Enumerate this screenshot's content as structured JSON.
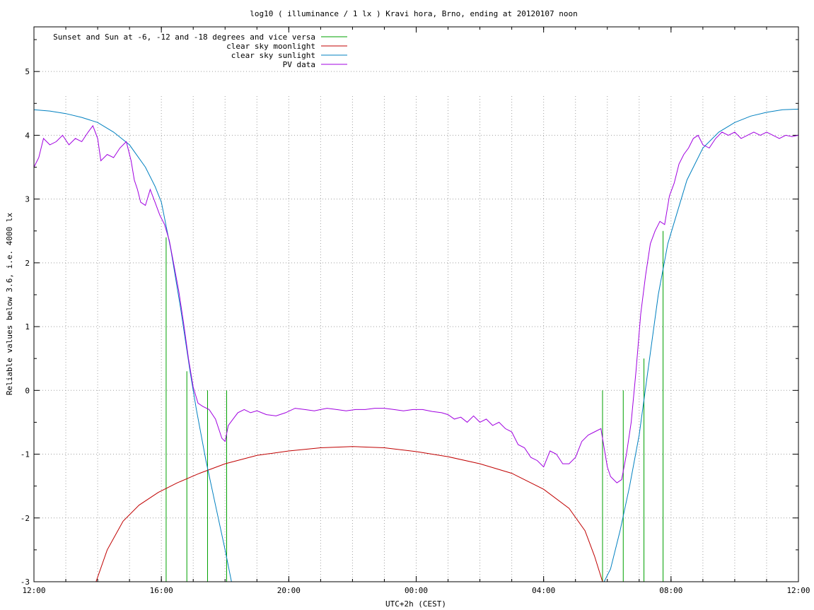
{
  "chart_data": {
    "type": "line",
    "title": "log10 ( illuminance / 1 lx ) Kravi hora, Brno, ending at 20120107 noon",
    "xlabel": "UTC+2h (CEST)",
    "ylabel": "Reliable values below 3.6, i.e. 4000 lx",
    "xlim": [
      0,
      24
    ],
    "ylim": [
      -3,
      5.7
    ],
    "x_ticks": [
      {
        "pos": 0,
        "label": "12:00"
      },
      {
        "pos": 4,
        "label": "16:00"
      },
      {
        "pos": 8,
        "label": "20:00"
      },
      {
        "pos": 12,
        "label": "00:00"
      },
      {
        "pos": 16,
        "label": "04:00"
      },
      {
        "pos": 20,
        "label": "08:00"
      },
      {
        "pos": 24,
        "label": "12:00"
      }
    ],
    "y_ticks": [
      {
        "value": -3,
        "label": "-3"
      },
      {
        "value": -2,
        "label": "-2"
      },
      {
        "value": -1,
        "label": "-1"
      },
      {
        "value": 0,
        "label": "0"
      },
      {
        "value": 1,
        "label": "1"
      },
      {
        "value": 2,
        "label": "2"
      },
      {
        "value": 3,
        "label": "3"
      },
      {
        "value": 4,
        "label": "4"
      },
      {
        "value": 5,
        "label": "5"
      }
    ],
    "grid": true,
    "legend_position": "top-left",
    "series": [
      {
        "name": "Sunset and Sun at -6, -12 and -18 degrees and vice versa",
        "color": "#00a000",
        "kind": "vertical-markers",
        "markers": [
          {
            "x": 4.15,
            "y_top": 2.4
          },
          {
            "x": 4.8,
            "y_top": 0.3
          },
          {
            "x": 5.45,
            "y_top": 0
          },
          {
            "x": 6.05,
            "y_top": 0
          },
          {
            "x": 17.85,
            "y_top": 0
          },
          {
            "x": 18.5,
            "y_top": 0
          },
          {
            "x": 19.15,
            "y_top": 0.5
          },
          {
            "x": 19.75,
            "y_top": 2.5
          }
        ]
      },
      {
        "name": "clear sky moonlight",
        "color": "#c00000",
        "x": [
          1.95,
          2.3,
          2.8,
          3.3,
          3.9,
          4.5,
          5.2,
          6.0,
          7.0,
          8.0,
          9.0,
          10.0,
          11.0,
          12.0,
          13.0,
          14.0,
          15.0,
          16.0,
          16.8,
          17.3,
          17.6,
          17.85
        ],
        "y": [
          -3.0,
          -2.5,
          -2.05,
          -1.8,
          -1.6,
          -1.45,
          -1.3,
          -1.15,
          -1.02,
          -0.95,
          -0.9,
          -0.88,
          -0.9,
          -0.96,
          -1.04,
          -1.15,
          -1.3,
          -1.55,
          -1.85,
          -2.2,
          -2.6,
          -3.0
        ]
      },
      {
        "name": "clear sky sunlight",
        "color": "#0080c0",
        "x": [
          0,
          0.5,
          1.0,
          1.5,
          2.0,
          2.5,
          3.0,
          3.5,
          3.8,
          4.0,
          4.3,
          4.6,
          4.9,
          5.1,
          5.4,
          5.7,
          6.0,
          6.2,
          17.9,
          18.1,
          18.4,
          18.7,
          19.0,
          19.3,
          19.6,
          19.9,
          20.2,
          20.5,
          21.0,
          21.5,
          22.0,
          22.5,
          23.0,
          23.5,
          24.0
        ],
        "y": [
          4.4,
          4.38,
          4.34,
          4.28,
          4.2,
          4.05,
          3.85,
          3.5,
          3.2,
          2.95,
          2.2,
          1.3,
          0.3,
          -0.3,
          -1.1,
          -1.8,
          -2.5,
          -3.0,
          -3.0,
          -2.8,
          -2.2,
          -1.5,
          -0.7,
          0.4,
          1.5,
          2.3,
          2.8,
          3.3,
          3.8,
          4.05,
          4.2,
          4.3,
          4.36,
          4.4,
          4.41
        ]
      },
      {
        "name": "PV data",
        "color": "#a000e0",
        "x": [
          0,
          0.15,
          0.3,
          0.5,
          0.7,
          0.9,
          1.1,
          1.3,
          1.5,
          1.7,
          1.85,
          2.0,
          2.1,
          2.3,
          2.5,
          2.7,
          2.9,
          3.05,
          3.15,
          3.25,
          3.35,
          3.5,
          3.65,
          3.8,
          3.95,
          4.1,
          4.25,
          4.4,
          4.55,
          4.7,
          4.85,
          5.0,
          5.15,
          5.3,
          5.5,
          5.7,
          5.9,
          6.0,
          6.1,
          6.25,
          6.4,
          6.6,
          6.8,
          7.0,
          7.3,
          7.6,
          7.9,
          8.2,
          8.5,
          8.8,
          9.0,
          9.2,
          9.5,
          9.8,
          10.1,
          10.4,
          10.7,
          11.0,
          11.3,
          11.6,
          11.9,
          12.2,
          12.5,
          12.8,
          13.0,
          13.2,
          13.4,
          13.6,
          13.8,
          14.0,
          14.2,
          14.4,
          14.6,
          14.8,
          15.0,
          15.2,
          15.4,
          15.6,
          15.8,
          16.0,
          16.2,
          16.4,
          16.6,
          16.8,
          17.0,
          17.2,
          17.4,
          17.6,
          17.8,
          17.9,
          18.0,
          18.1,
          18.2,
          18.3,
          18.45,
          18.6,
          18.75,
          18.9,
          19.05,
          19.2,
          19.35,
          19.5,
          19.65,
          19.8,
          19.95,
          20.1,
          20.25,
          20.4,
          20.55,
          20.7,
          20.85,
          21.0,
          21.2,
          21.4,
          21.6,
          21.8,
          22.0,
          22.2,
          22.4,
          22.6,
          22.8,
          23.0,
          23.2,
          23.4,
          23.6,
          23.8,
          24.0
        ],
        "y": [
          3.5,
          3.65,
          3.95,
          3.85,
          3.9,
          4.0,
          3.85,
          3.95,
          3.9,
          4.05,
          4.15,
          3.95,
          3.6,
          3.7,
          3.65,
          3.8,
          3.9,
          3.6,
          3.3,
          3.15,
          2.95,
          2.9,
          3.15,
          2.95,
          2.75,
          2.6,
          2.35,
          1.95,
          1.55,
          1.05,
          0.5,
          0.05,
          -0.2,
          -0.25,
          -0.3,
          -0.45,
          -0.75,
          -0.8,
          -0.55,
          -0.45,
          -0.35,
          -0.3,
          -0.35,
          -0.32,
          -0.38,
          -0.4,
          -0.35,
          -0.28,
          -0.3,
          -0.32,
          -0.3,
          -0.28,
          -0.3,
          -0.32,
          -0.3,
          -0.3,
          -0.28,
          -0.28,
          -0.3,
          -0.32,
          -0.3,
          -0.3,
          -0.33,
          -0.35,
          -0.38,
          -0.45,
          -0.42,
          -0.5,
          -0.4,
          -0.5,
          -0.45,
          -0.55,
          -0.5,
          -0.6,
          -0.65,
          -0.85,
          -0.9,
          -1.05,
          -1.1,
          -1.2,
          -0.95,
          -1.0,
          -1.15,
          -1.15,
          -1.05,
          -0.8,
          -0.7,
          -0.65,
          -0.6,
          -0.9,
          -1.2,
          -1.35,
          -1.4,
          -1.45,
          -1.4,
          -1.0,
          -0.5,
          0.3,
          1.2,
          1.8,
          2.3,
          2.5,
          2.65,
          2.6,
          3.05,
          3.25,
          3.55,
          3.7,
          3.8,
          3.95,
          4.0,
          3.85,
          3.8,
          3.95,
          4.05,
          4.0,
          4.05,
          3.95,
          4.0,
          4.05,
          4.0,
          4.05,
          4.0,
          3.95,
          4.0,
          3.98,
          4.0
        ]
      }
    ]
  }
}
